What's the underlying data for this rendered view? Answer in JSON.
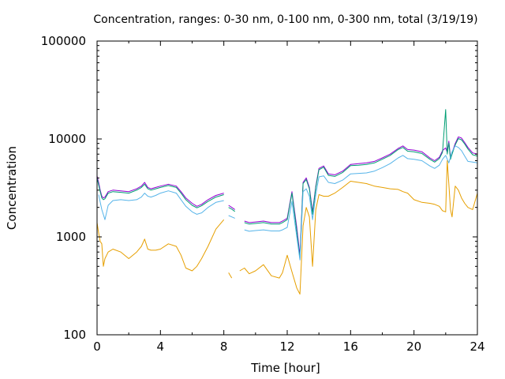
{
  "chart_data": {
    "type": "line",
    "title": "Concentration, ranges: 0-30 nm, 0-100 nm, 0-300 nm, total (3/19/19)",
    "xlabel": "Time [hour]",
    "ylabel": "Concentration",
    "xlim": [
      0,
      24
    ],
    "ylim": [
      100,
      100000
    ],
    "yscale": "log",
    "grid": false,
    "xticks": [
      0,
      4,
      8,
      12,
      16,
      20,
      24
    ],
    "xtick_labels": [
      "0",
      "4",
      "8",
      "12",
      "16",
      "20",
      "24"
    ],
    "yticks": [
      100,
      1000,
      10000,
      100000
    ],
    "ytick_labels": [
      "100",
      "1000",
      "10000",
      "100000"
    ],
    "series": [
      {
        "color": "#9400d3",
        "x": [
          0,
          0.1,
          0.2,
          0.3,
          0.4,
          0.5,
          0.7,
          1,
          1.5,
          2,
          2.5,
          2.8,
          3,
          3.2,
          3.4,
          3.7,
          4,
          4.5,
          5,
          5.3,
          5.6,
          6,
          6.3,
          6.6,
          7,
          7.5,
          8,
          8.1,
          8.3,
          8.5,
          8.7,
          9,
          9.3,
          9.6,
          10,
          10.5,
          11,
          11.5,
          11.7,
          12,
          12.3,
          12.6,
          12.8,
          13,
          13.2,
          13.4,
          13.6,
          13.8,
          14,
          14.3,
          14.6,
          15,
          15.5,
          16,
          16.5,
          17,
          17.5,
          18,
          18.5,
          19,
          19.3,
          19.6,
          20,
          20.5,
          21,
          21.3,
          21.6,
          21.8,
          22,
          22.1,
          22.2,
          22.3,
          22.4,
          22.6,
          22.8,
          23,
          23.2,
          23.4,
          23.7,
          24
        ],
        "y": [
          4200,
          3600,
          3000,
          2600,
          2500,
          2550,
          2900,
          3000,
          2950,
          2900,
          3100,
          3300,
          3600,
          3200,
          3100,
          3200,
          3300,
          3450,
          3300,
          2900,
          2500,
          2200,
          2050,
          2150,
          2400,
          2650,
          2800,
          null,
          2100,
          2000,
          1900,
          null,
          1450,
          1400,
          1420,
          1450,
          1400,
          1400,
          1450,
          1550,
          2900,
          1250,
          650,
          3600,
          4000,
          3200,
          1800,
          3300,
          5000,
          5300,
          4400,
          4300,
          4700,
          5500,
          5600,
          5700,
          5900,
          6400,
          7000,
          8000,
          8500,
          7800,
          7700,
          7400,
          6400,
          6000,
          6500,
          7600,
          8100,
          7300,
          9500,
          6500,
          7200,
          9000,
          10500,
          10200,
          9200,
          8200,
          7200,
          7000
        ]
      },
      {
        "color": "#009e73",
        "x": [
          0,
          0.1,
          0.2,
          0.3,
          0.4,
          0.5,
          0.7,
          1,
          1.5,
          2,
          2.5,
          2.8,
          3,
          3.2,
          3.4,
          3.7,
          4,
          4.5,
          5,
          5.3,
          5.6,
          6,
          6.3,
          6.6,
          7,
          7.5,
          8,
          8.1,
          8.3,
          8.5,
          8.7,
          9,
          9.3,
          9.6,
          10,
          10.5,
          11,
          11.5,
          11.7,
          12,
          12.3,
          12.6,
          12.8,
          13,
          13.2,
          13.4,
          13.6,
          13.8,
          14,
          14.3,
          14.6,
          15,
          15.5,
          16,
          16.5,
          17,
          17.5,
          18,
          18.5,
          19,
          19.3,
          19.6,
          20,
          20.5,
          21,
          21.3,
          21.6,
          21.8,
          22,
          22.1,
          22.2,
          22.3,
          22.4,
          22.6,
          22.8,
          23,
          23.2,
          23.4,
          23.7,
          24
        ],
        "y": [
          4000,
          3400,
          2900,
          2500,
          2400,
          2450,
          2800,
          2900,
          2850,
          2800,
          3000,
          3200,
          3450,
          3100,
          3000,
          3100,
          3200,
          3350,
          3200,
          2800,
          2400,
          2100,
          1980,
          2080,
          2300,
          2550,
          2700,
          null,
          2000,
          1920,
          1820,
          null,
          1400,
          1350,
          1370,
          1400,
          1350,
          1350,
          1400,
          1500,
          2800,
          1150,
          600,
          3500,
          3850,
          3100,
          1700,
          3200,
          4850,
          5150,
          4250,
          4150,
          4550,
          5350,
          5400,
          5500,
          5700,
          6200,
          6800,
          7800,
          8200,
          7500,
          7400,
          7100,
          6200,
          5800,
          6300,
          7300,
          20000,
          7000,
          9100,
          6200,
          7000,
          8700,
          10100,
          9800,
          8900,
          7900,
          6900,
          6700
        ]
      },
      {
        "color": "#56b4e9",
        "x": [
          0.1,
          0.3,
          0.5,
          0.7,
          1,
          1.5,
          2,
          2.5,
          2.8,
          3,
          3.2,
          3.4,
          3.7,
          4,
          4.5,
          5,
          5.3,
          5.6,
          6,
          6.3,
          6.6,
          7,
          7.5,
          8,
          8.1,
          8.3,
          8.5,
          8.7,
          9,
          9.3,
          9.6,
          10,
          10.5,
          11,
          11.5,
          11.7,
          12,
          12.3,
          12.6,
          12.8,
          13,
          13.2,
          13.4,
          13.6,
          13.8,
          14,
          14.3,
          14.6,
          15,
          15.5,
          16,
          16.5,
          17,
          17.5,
          18,
          18.5,
          19,
          19.3,
          19.6,
          20,
          20.5,
          21,
          21.3,
          21.6,
          21.8,
          22,
          22.2,
          22.4,
          22.6,
          22.8,
          23,
          23.2,
          23.4,
          23.7,
          24
        ],
        "y": [
          2700,
          1900,
          1500,
          2100,
          2350,
          2400,
          2350,
          2400,
          2550,
          2800,
          2600,
          2550,
          2650,
          2800,
          2950,
          2800,
          2400,
          2050,
          1800,
          1700,
          1760,
          2000,
          2250,
          2350,
          null,
          1650,
          1600,
          1550,
          null,
          1180,
          1140,
          1160,
          1180,
          1150,
          1150,
          1180,
          1250,
          2300,
          1000,
          580,
          2900,
          3100,
          2600,
          1500,
          2700,
          4100,
          4200,
          3600,
          3500,
          3800,
          4400,
          4450,
          4500,
          4700,
          5100,
          5600,
          6400,
          6800,
          6300,
          6200,
          6000,
          5300,
          5000,
          5400,
          6200,
          6800,
          5700,
          7400,
          8500,
          8200,
          7600,
          6700,
          5900,
          5800,
          5700
        ]
      },
      {
        "color": "#e69f00",
        "x": [
          0,
          0.1,
          0.2,
          0.3,
          0.4,
          0.5,
          0.7,
          1,
          1.5,
          2,
          2.5,
          2.8,
          3,
          3.2,
          3.4,
          3.7,
          4,
          4.5,
          5,
          5.3,
          5.6,
          6,
          6.3,
          6.6,
          7,
          7.5,
          8,
          8.1,
          8.3,
          8.5,
          8.7,
          9,
          9.3,
          9.6,
          10,
          10.5,
          11,
          11.5,
          11.7,
          12,
          12.3,
          12.6,
          12.8,
          13,
          13.2,
          13.4,
          13.6,
          13.8,
          14,
          14.3,
          14.6,
          15,
          15.5,
          16,
          16.5,
          17,
          17.5,
          18,
          18.5,
          19,
          19.3,
          19.6,
          20,
          20.5,
          21,
          21.3,
          21.6,
          21.8,
          22,
          22.1,
          22.2,
          22.3,
          22.4,
          22.6,
          22.8,
          23,
          23.2,
          23.4,
          23.7,
          24
        ],
        "y": [
          1400,
          1100,
          900,
          850,
          500,
          600,
          700,
          750,
          700,
          600,
          700,
          800,
          950,
          750,
          730,
          730,
          750,
          850,
          800,
          650,
          480,
          450,
          500,
          600,
          800,
          1200,
          1500,
          null,
          430,
          380,
          null,
          450,
          480,
          420,
          450,
          520,
          400,
          380,
          430,
          650,
          440,
          300,
          260,
          1300,
          2000,
          1600,
          500,
          1900,
          2700,
          2600,
          2600,
          2800,
          3200,
          3700,
          3600,
          3500,
          3300,
          3200,
          3100,
          3050,
          2900,
          2800,
          2400,
          2250,
          2200,
          2150,
          2050,
          1850,
          1800,
          6000,
          3500,
          1900,
          1600,
          3300,
          3000,
          2500,
          2200,
          2000,
          1900,
          2800
        ]
      }
    ]
  }
}
